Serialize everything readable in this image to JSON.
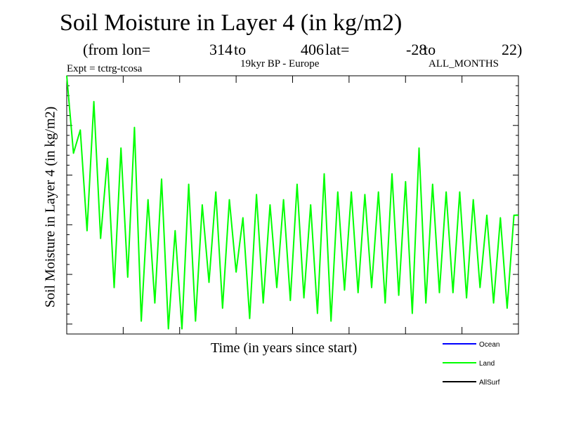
{
  "chart_data": {
    "type": "line",
    "title": "Soil Moisture in Layer 4 (in kg/m2)",
    "subtitle": {
      "prefix": "(from lon=",
      "lon_start": "314",
      "to_1": "to",
      "lon_end": "406",
      "lat_label": "lat=",
      "lat_start": "-28",
      "to_2": "to",
      "lat_end": "22)"
    },
    "experiment": "Expt = tctrg-tcosa",
    "period": "19kyr BP - Europe",
    "months": "ALL_MONTHS",
    "xlabel": "Time (in years since start)",
    "ylabel": "Soil Moisture in Layer 4 (in kg/m2)",
    "xlim": [
      0,
      100
    ],
    "ylim": [
      0,
      1
    ],
    "series": [
      {
        "name": "Ocean",
        "color": "#0000ff",
        "x": [],
        "values": []
      },
      {
        "name": "Land",
        "color": "#00ff00",
        "x": [
          0,
          1.5,
          3,
          4.5,
          6,
          7.5,
          9,
          10.5,
          12,
          13.5,
          15,
          16.5,
          18,
          19.5,
          21,
          22.5,
          24,
          25.5,
          27,
          28.5,
          30,
          31.5,
          33,
          34.5,
          36,
          37.5,
          39,
          40.5,
          42,
          43.5,
          45,
          46.5,
          48,
          49.5,
          51,
          52.5,
          54,
          55.5,
          57,
          58.5,
          60,
          61.5,
          63,
          64.5,
          66,
          67.5,
          69,
          70.5,
          72,
          73.5,
          75,
          76.5,
          78,
          79.5,
          81,
          82.5,
          84,
          85.5,
          87,
          88.5,
          90,
          91.5,
          93,
          94.5,
          96,
          97.5,
          99,
          100
        ],
        "values": [
          1.0,
          0.7,
          0.79,
          0.4,
          0.9,
          0.37,
          0.68,
          0.18,
          0.72,
          0.22,
          0.8,
          0.05,
          0.52,
          0.12,
          0.6,
          0.02,
          0.4,
          0.02,
          0.58,
          0.05,
          0.5,
          0.2,
          0.55,
          0.1,
          0.52,
          0.24,
          0.45,
          0.06,
          0.54,
          0.12,
          0.5,
          0.18,
          0.52,
          0.13,
          0.58,
          0.14,
          0.5,
          0.08,
          0.62,
          0.05,
          0.55,
          0.17,
          0.55,
          0.16,
          0.54,
          0.18,
          0.55,
          0.12,
          0.62,
          0.15,
          0.59,
          0.08,
          0.72,
          0.12,
          0.58,
          0.16,
          0.55,
          0.16,
          0.55,
          0.14,
          0.52,
          0.18,
          0.46,
          0.12,
          0.45,
          0.1,
          0.46,
          0.46
        ]
      },
      {
        "name": "AllSurf",
        "color": "#000000",
        "x": [],
        "values": []
      }
    ],
    "legend_position": "bottom-right",
    "grid": false
  }
}
